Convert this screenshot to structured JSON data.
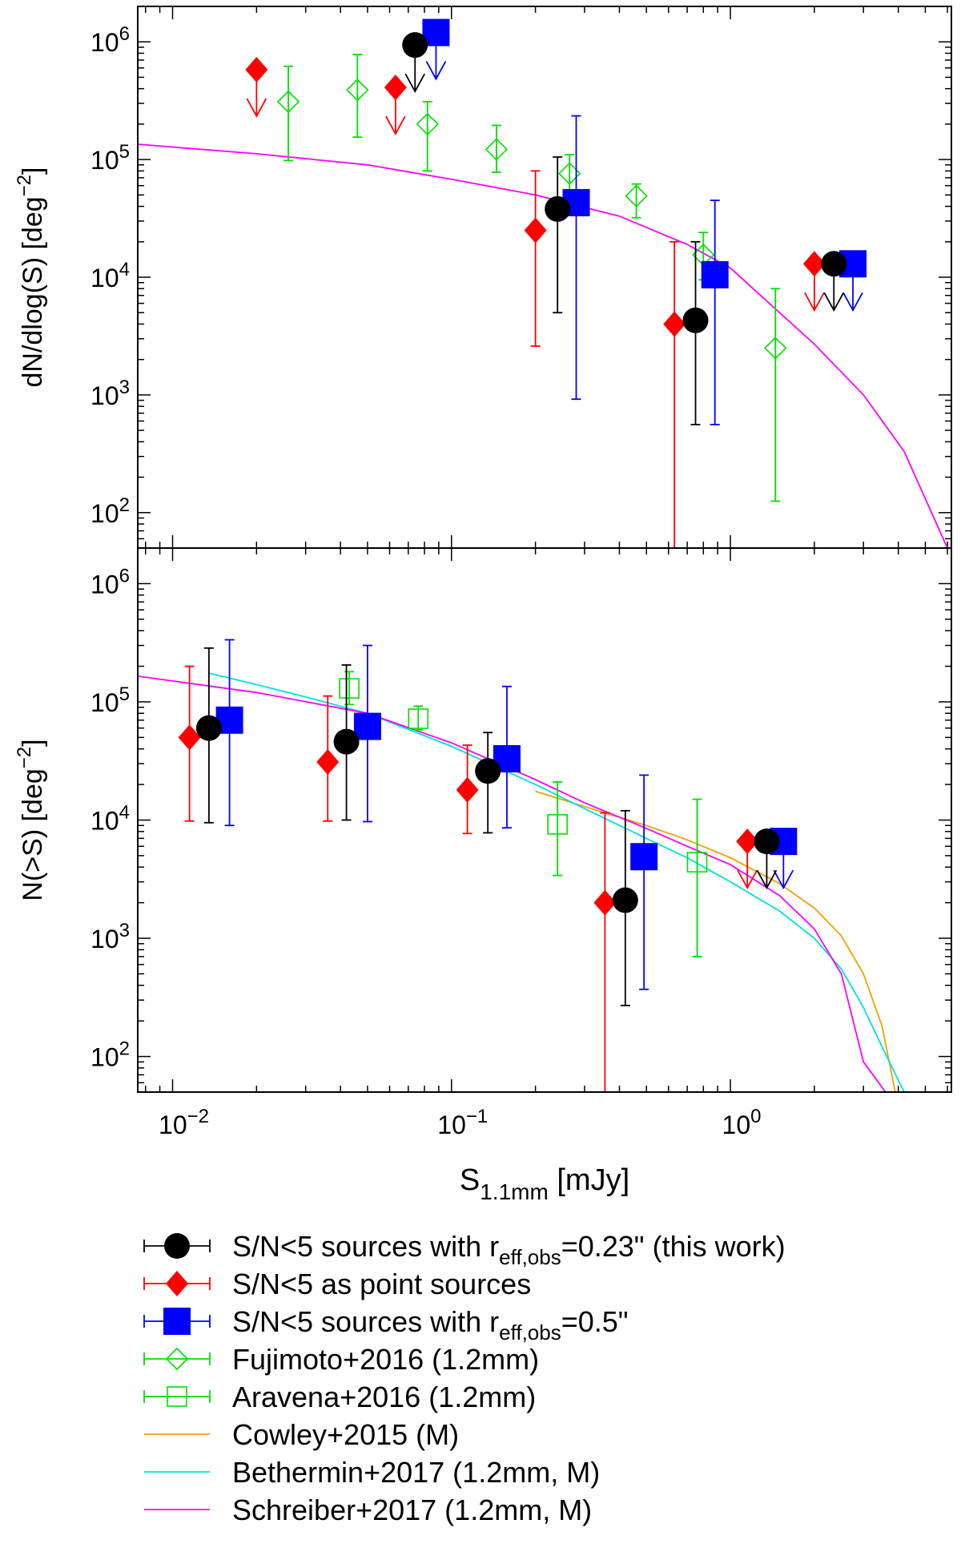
{
  "colors": {
    "this_work": "#000000",
    "point": "#ff0000",
    "r05": "#0000ff",
    "lit": "#00e000",
    "cowley": "#f0a000",
    "bethermin": "#00e0e0",
    "schreiber": "#ff00ff"
  },
  "chart_data": [
    {
      "type": "scatter",
      "panel": "top",
      "ylabel": "dN/dlog(S) [deg",
      "ylabel_sup": "−2",
      "ylabel_end": "]",
      "xscale": "log",
      "yscale": "log",
      "xlim": [
        0.0075,
        6.2
      ],
      "ylim": [
        50,
        2000000
      ],
      "yticks": [
        100,
        1000,
        10000,
        100000,
        1000000
      ],
      "ytick_labels": [
        {
          "base": "10",
          "exp": "2"
        },
        {
          "base": "10",
          "exp": "3"
        },
        {
          "base": "10",
          "exp": "4"
        },
        {
          "base": "10",
          "exp": "5"
        },
        {
          "base": "10",
          "exp": "6"
        }
      ],
      "series": [
        {
          "key": "this_work",
          "marker": "circle",
          "points": [
            {
              "x": 0.24,
              "y": 38000,
              "lo": 5000,
              "hi": 105000
            },
            {
              "x": 0.75,
              "y": 4300,
              "lo": 560,
              "hi": 20000
            }
          ],
          "upper_limits": [
            {
              "x": 0.074,
              "y": 940000
            },
            {
              "x": 2.35,
              "y": 13000
            }
          ]
        },
        {
          "key": "point",
          "marker": "diamond",
          "points": [
            {
              "x": 0.2,
              "y": 25000,
              "lo": 2600,
              "hi": 80000
            },
            {
              "x": 0.63,
              "y": 4000,
              "lo": 50,
              "hi": 20000
            }
          ],
          "upper_limits": [
            {
              "x": 0.02,
              "y": 580000
            },
            {
              "x": 0.063,
              "y": 410000
            },
            {
              "x": 2.0,
              "y": 13000
            }
          ]
        },
        {
          "key": "r05",
          "marker": "square",
          "points": [
            {
              "x": 0.28,
              "y": 43000,
              "lo": 920,
              "hi": 235000
            },
            {
              "x": 0.88,
              "y": 10500,
              "lo": 560,
              "hi": 45000
            }
          ],
          "upper_limits": [
            {
              "x": 0.088,
              "y": 1200000
            },
            {
              "x": 2.75,
              "y": 13000
            }
          ]
        },
        {
          "key": "fujimoto",
          "marker": "open-diamond",
          "points": [
            {
              "x": 0.026,
              "y": 310000,
              "lo": 98000,
              "hi": 620000
            },
            {
              "x": 0.046,
              "y": 390000,
              "lo": 155000,
              "hi": 780000
            },
            {
              "x": 0.082,
              "y": 200000,
              "lo": 80000,
              "hi": 310000
            },
            {
              "x": 0.145,
              "y": 122000,
              "lo": 78000,
              "hi": 195000
            },
            {
              "x": 0.265,
              "y": 76000,
              "lo": 50000,
              "hi": 110000
            },
            {
              "x": 0.46,
              "y": 49000,
              "lo": 32000,
              "hi": 62000
            },
            {
              "x": 0.8,
              "y": 15500,
              "lo": 9500,
              "hi": 24000
            },
            {
              "x": 1.45,
              "y": 2500,
              "lo": 125,
              "hi": 8000
            }
          ]
        },
        {
          "key": "schreiber",
          "marker": "line",
          "curve": [
            [
              0.0075,
              135000
            ],
            [
              0.02,
              112000
            ],
            [
              0.05,
              90000
            ],
            [
              0.1,
              68000
            ],
            [
              0.2,
              50000
            ],
            [
              0.4,
              33000
            ],
            [
              0.7,
              19000
            ],
            [
              1.0,
              12000
            ],
            [
              1.5,
              5000
            ],
            [
              2.0,
              2700
            ],
            [
              3.0,
              1000
            ],
            [
              4.2,
              330
            ],
            [
              6.0,
              50
            ]
          ]
        }
      ]
    },
    {
      "type": "scatter",
      "panel": "bottom",
      "ylabel": "N(>S) [deg",
      "ylabel_sup": "−2",
      "ylabel_end": "]",
      "xlabel": "S",
      "xlabel_sub": "1.1mm",
      "xlabel_end": " [mJy]",
      "xscale": "log",
      "yscale": "log",
      "xlim": [
        0.0075,
        6.2
      ],
      "ylim": [
        50,
        2000000
      ],
      "xticks": [
        0.01,
        0.1,
        1
      ],
      "xtick_labels": [
        {
          "base": "10",
          "exp": "−2"
        },
        {
          "base": "10",
          "exp": "−1"
        },
        {
          "base": "10",
          "exp": "0"
        }
      ],
      "yticks": [
        100,
        1000,
        10000,
        100000,
        1000000
      ],
      "ytick_labels": [
        {
          "base": "10",
          "exp": "2"
        },
        {
          "base": "10",
          "exp": "3"
        },
        {
          "base": "10",
          "exp": "4"
        },
        {
          "base": "10",
          "exp": "5"
        },
        {
          "base": "10",
          "exp": "6"
        }
      ],
      "series": [
        {
          "key": "this_work",
          "marker": "circle",
          "points": [
            {
              "x": 0.0135,
              "y": 60000,
              "lo": 9500,
              "hi": 285000
            },
            {
              "x": 0.042,
              "y": 46000,
              "lo": 10000,
              "hi": 205000
            },
            {
              "x": 0.135,
              "y": 26000,
              "lo": 7800,
              "hi": 55000
            },
            {
              "x": 0.42,
              "y": 2100,
              "lo": 270,
              "hi": 12000
            }
          ],
          "upper_limits": [
            {
              "x": 1.35,
              "y": 6600
            }
          ]
        },
        {
          "key": "point",
          "marker": "diamond",
          "points": [
            {
              "x": 0.0115,
              "y": 50000,
              "lo": 9800,
              "hi": 200000
            },
            {
              "x": 0.036,
              "y": 31000,
              "lo": 9800,
              "hi": 112000
            },
            {
              "x": 0.114,
              "y": 18000,
              "lo": 7700,
              "hi": 43000
            },
            {
              "x": 0.355,
              "y": 2000,
              "lo": 50,
              "hi": 11500
            }
          ],
          "upper_limits": [
            {
              "x": 1.15,
              "y": 6600
            }
          ]
        },
        {
          "key": "r05",
          "marker": "square",
          "points": [
            {
              "x": 0.016,
              "y": 70000,
              "lo": 9000,
              "hi": 335000
            },
            {
              "x": 0.05,
              "y": 62000,
              "lo": 9700,
              "hi": 300000
            },
            {
              "x": 0.158,
              "y": 33000,
              "lo": 8600,
              "hi": 135000
            },
            {
              "x": 0.49,
              "y": 4900,
              "lo": 370,
              "hi": 24000
            }
          ],
          "upper_limits": [
            {
              "x": 1.55,
              "y": 6600
            }
          ]
        },
        {
          "key": "aravena",
          "marker": "open-square",
          "points": [
            {
              "x": 0.043,
              "y": 130000,
              "lo": 95000,
              "hi": 180000
            },
            {
              "x": 0.076,
              "y": 72000,
              "lo": 58000,
              "hi": 92000
            },
            {
              "x": 0.24,
              "y": 9200,
              "lo": 3400,
              "hi": 21000
            },
            {
              "x": 0.76,
              "y": 4400,
              "lo": 700,
              "hi": 15000
            }
          ]
        },
        {
          "key": "cowley",
          "marker": "line",
          "curve": [
            [
              0.2,
              17500
            ],
            [
              0.3,
              13000
            ],
            [
              0.5,
              9000
            ],
            [
              0.7,
              6800
            ],
            [
              1.0,
              4800
            ],
            [
              1.5,
              2900
            ],
            [
              2.0,
              1800
            ],
            [
              2.5,
              1050
            ],
            [
              3.0,
              500
            ],
            [
              3.5,
              180
            ],
            [
              3.9,
              50
            ]
          ]
        },
        {
          "key": "bethermin",
          "marker": "line",
          "curve": [
            [
              0.0135,
              175000
            ],
            [
              0.02,
              140000
            ],
            [
              0.03,
              110000
            ],
            [
              0.05,
              80000
            ],
            [
              0.1,
              42000
            ],
            [
              0.2,
              20000
            ],
            [
              0.3,
              12500
            ],
            [
              0.5,
              7000
            ],
            [
              0.7,
              4800
            ],
            [
              1.0,
              3000
            ],
            [
              1.5,
              1700
            ],
            [
              2.0,
              1000
            ],
            [
              2.5,
              550
            ],
            [
              3.0,
              260
            ],
            [
              3.5,
              120
            ],
            [
              4.2,
              50
            ]
          ]
        },
        {
          "key": "schreiber",
          "marker": "line",
          "curve": [
            [
              0.0075,
              165000
            ],
            [
              0.02,
              120000
            ],
            [
              0.05,
              80000
            ],
            [
              0.1,
              45000
            ],
            [
              0.2,
              22000
            ],
            [
              0.3,
              14000
            ],
            [
              0.5,
              8500
            ],
            [
              0.7,
              6000
            ],
            [
              1.0,
              4200
            ],
            [
              1.5,
              2300
            ],
            [
              2.0,
              1200
            ],
            [
              2.5,
              500
            ],
            [
              3.0,
              90
            ],
            [
              3.6,
              50
            ]
          ]
        }
      ]
    }
  ],
  "legend": [
    {
      "key": "this_work",
      "marker": "circle",
      "text": "S/N<5 sources with r",
      "sub": "eff,obs",
      "end": "=0.23\" (this work)"
    },
    {
      "key": "point",
      "marker": "diamond",
      "text": "S/N<5 as point sources",
      "sub": "",
      "end": ""
    },
    {
      "key": "r05",
      "marker": "square",
      "text": "S/N<5 sources with r",
      "sub": "eff,obs",
      "end": "=0.5\""
    },
    {
      "key": "fujimoto",
      "marker": "open-diamond",
      "text": "Fujimoto+2016 (1.2mm)",
      "sub": "",
      "end": ""
    },
    {
      "key": "aravena",
      "marker": "open-square",
      "text": "Aravena+2016 (1.2mm)",
      "sub": "",
      "end": ""
    },
    {
      "key": "cowley",
      "marker": "line",
      "text": "Cowley+2015 (M)",
      "sub": "",
      "end": ""
    },
    {
      "key": "bethermin",
      "marker": "line",
      "text": "Bethermin+2017 (1.2mm, M)",
      "sub": "",
      "end": ""
    },
    {
      "key": "schreiber",
      "marker": "line",
      "text": "Schreiber+2017 (1.2mm, M)",
      "sub": "",
      "end": ""
    }
  ]
}
